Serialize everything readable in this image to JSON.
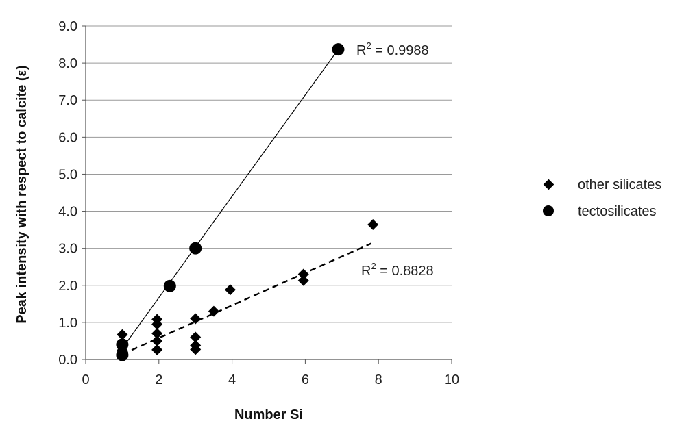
{
  "chart_data": {
    "type": "scatter",
    "xlabel": "Number Si",
    "ylabel": "Peak intensity with respect to calcite (ε)",
    "xlim": [
      0,
      10
    ],
    "ylim": [
      0,
      9
    ],
    "xticks": [
      "0",
      "2",
      "4",
      "6",
      "8",
      "10"
    ],
    "xtick_values": [
      0,
      2,
      4,
      6,
      8,
      10
    ],
    "yticks": [
      "0.0",
      "1.0",
      "2.0",
      "3.0",
      "4.0",
      "5.0",
      "6.0",
      "7.0",
      "8.0",
      "9.0"
    ],
    "ytick_values": [
      0,
      1,
      2,
      3,
      4,
      5,
      6,
      7,
      8,
      9
    ],
    "grid": "horizontal",
    "legend_position": "right",
    "series": [
      {
        "name": "other silicates",
        "marker": "diamond",
        "color": "#000000",
        "points": [
          [
            1,
            0.67
          ],
          [
            1,
            0.38
          ],
          [
            1,
            0.25
          ],
          [
            1,
            0.14
          ],
          [
            1.95,
            0.26
          ],
          [
            1.95,
            0.5
          ],
          [
            1.95,
            0.7
          ],
          [
            1.95,
            0.95
          ],
          [
            1.95,
            1.08
          ],
          [
            3,
            0.27
          ],
          [
            3,
            0.38
          ],
          [
            3,
            0.6
          ],
          [
            3,
            1.1
          ],
          [
            3.5,
            1.3
          ],
          [
            3.95,
            1.88
          ],
          [
            5.95,
            2.13
          ],
          [
            5.95,
            2.3
          ],
          [
            7.85,
            3.64
          ]
        ],
        "trendline": {
          "style": "dashed",
          "from": [
            1,
            0.14
          ],
          "to": [
            7.8,
            3.13
          ]
        },
        "r2_label": {
          "prefix": "R",
          "sup": "2",
          "value": " = 0.8828"
        }
      },
      {
        "name": "tectosilicates",
        "marker": "circle",
        "color": "#000000",
        "points": [
          [
            1,
            0.12
          ],
          [
            1,
            0.4
          ],
          [
            2.3,
            1.98
          ],
          [
            3,
            3.0
          ],
          [
            6.9,
            8.37
          ]
        ],
        "trendline": {
          "style": "solid",
          "from": [
            1,
            0.3
          ],
          "to": [
            6.9,
            8.37
          ]
        },
        "r2_label": {
          "prefix": "R",
          "sup": "2",
          "value": " = 0.9988"
        }
      }
    ]
  }
}
